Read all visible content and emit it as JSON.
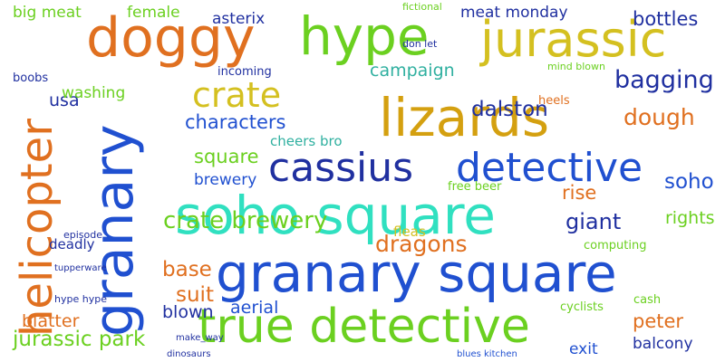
{
  "words": [
    "doggy",
    "hype",
    "jurassic",
    "lizards",
    "crate",
    "granary",
    "helicopter",
    "cassius",
    "detective",
    "soho square",
    "granary square",
    "true detective",
    "crate brewery",
    "characters",
    "square",
    "brewery",
    "dragons",
    "giant",
    "soho",
    "rise",
    "dalston",
    "bagging",
    "dough",
    "campaign",
    "bottles",
    "meat monday",
    "asterix",
    "female",
    "big meat",
    "usa",
    "washing",
    "boobs",
    "base",
    "suit",
    "blown",
    "blatter",
    "jurassic park",
    "aerial",
    "peter",
    "balcony",
    "exit",
    "rights",
    "cheers bro",
    "incoming",
    "heels",
    "deadly",
    "episode",
    "hype hype",
    "free beer",
    "cyclists",
    "fleas",
    "don let",
    "mind blown",
    "computing",
    "cash",
    "tupperware",
    "fictional",
    "make_way",
    "blues kitchen",
    "dinosaurs"
  ]
}
